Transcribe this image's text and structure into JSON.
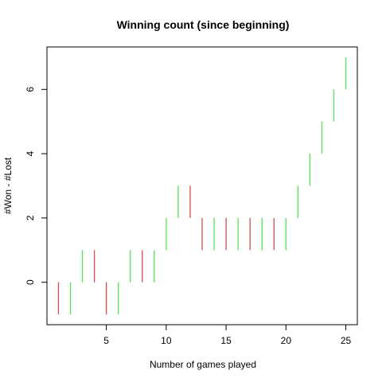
{
  "chart_data": {
    "type": "bar",
    "title": "Winning count (since beginning)",
    "xlabel": "Number of games played",
    "ylabel": "#Won - #Lost",
    "x": [
      1,
      2,
      3,
      4,
      5,
      6,
      7,
      8,
      9,
      10,
      11,
      12,
      13,
      14,
      15,
      16,
      17,
      18,
      19,
      20,
      21,
      22,
      23,
      24,
      25
    ],
    "values": [
      -1,
      0,
      1,
      0,
      -1,
      0,
      1,
      0,
      1,
      2,
      3,
      2,
      1,
      2,
      1,
      2,
      1,
      2,
      1,
      2,
      3,
      4,
      5,
      6,
      7
    ],
    "x_ticks": [
      5,
      10,
      15,
      20,
      25
    ],
    "y_ticks": [
      0,
      2,
      4,
      6
    ],
    "xlim": [
      0.04,
      25.96
    ],
    "ylim": [
      -1.32,
      7.32
    ],
    "grid": false,
    "colors": {
      "up": "#55e155",
      "down": "#e04848",
      "flat_up": "#bff0bf",
      "flat_down": "#f2c2c2"
    }
  }
}
